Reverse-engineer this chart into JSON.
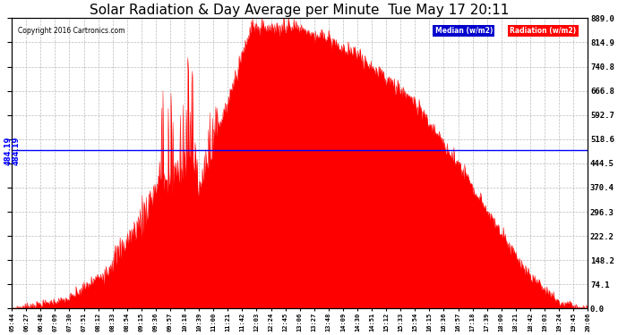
{
  "title": "Solar Radiation & Day Average per Minute  Tue May 17 20:11",
  "copyright": "Copyright 2016 Cartronics.com",
  "median_value": 484.19,
  "y_max": 889.0,
  "y_min": 0.0,
  "y_ticks": [
    0.0,
    74.1,
    148.2,
    222.2,
    296.3,
    370.4,
    444.5,
    518.6,
    592.7,
    666.8,
    740.8,
    814.9,
    889.0
  ],
  "y_right_labels": [
    "0.0",
    "74.1",
    "148.2",
    "222.2",
    "296.3",
    "370.4",
    "444.5",
    "518.6",
    "592.7",
    "666.8",
    "740.8",
    "814.9",
    "889.0"
  ],
  "background_color": "#ffffff",
  "fill_color": "#ff0000",
  "line_color": "#0000ff",
  "legend_median_bg": "#0000cc",
  "legend_radiation_bg": "#ff0000",
  "title_fontsize": 11,
  "median_label": "484.19",
  "x_labels": [
    "05:44",
    "06:27",
    "06:48",
    "07:09",
    "07:30",
    "07:51",
    "08:12",
    "08:33",
    "08:54",
    "09:15",
    "09:36",
    "09:57",
    "10:18",
    "10:39",
    "11:00",
    "11:21",
    "11:42",
    "12:03",
    "12:24",
    "12:45",
    "13:06",
    "13:27",
    "13:48",
    "14:09",
    "14:30",
    "14:51",
    "15:12",
    "15:33",
    "15:54",
    "16:15",
    "16:36",
    "16:57",
    "17:18",
    "17:39",
    "18:00",
    "18:21",
    "18:42",
    "19:03",
    "19:24",
    "19:45",
    "20:06"
  ]
}
